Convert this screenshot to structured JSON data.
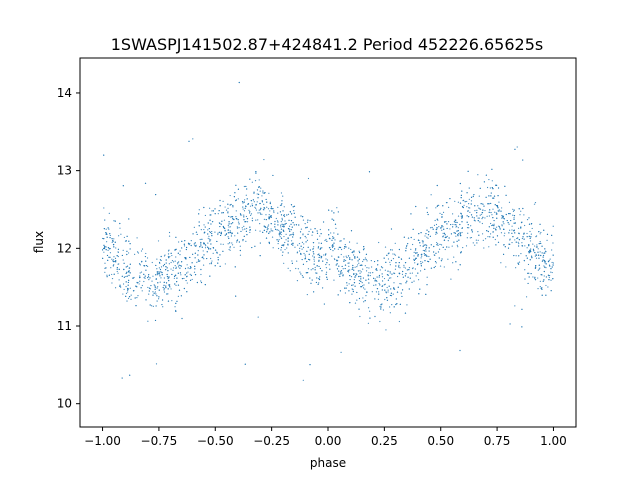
{
  "chart_data": {
    "type": "scatter",
    "title": "1SWASPJ141502.87+424841.2 Period 452226.65625s",
    "xlabel": "phase",
    "ylabel": "flux",
    "xlim": [
      -1.1,
      1.1
    ],
    "ylim": [
      9.7,
      14.45
    ],
    "xticks": [
      -1.0,
      -0.75,
      -0.5,
      -0.25,
      0.0,
      0.25,
      0.5,
      0.75,
      1.0
    ],
    "xtick_labels": [
      "−1.00",
      "−0.75",
      "−0.50",
      "−0.25",
      "0.00",
      "0.25",
      "0.50",
      "0.75",
      "1.00"
    ],
    "yticks": [
      10,
      11,
      12,
      13,
      14
    ],
    "ytick_labels": [
      "10",
      "11",
      "12",
      "13",
      "14"
    ],
    "grid": false,
    "series": [
      {
        "color": "#1f77b4",
        "marker": "dot",
        "profile_x": [
          -1.0,
          -0.95,
          -0.9,
          -0.85,
          -0.8,
          -0.75,
          -0.7,
          -0.65,
          -0.6,
          -0.55,
          -0.5,
          -0.45,
          -0.4,
          -0.35,
          -0.3,
          -0.25,
          -0.2,
          -0.15,
          -0.1,
          -0.05,
          0.0
        ],
        "profile_y": [
          12.1,
          11.9,
          11.75,
          11.65,
          11.6,
          11.6,
          11.65,
          11.75,
          11.9,
          12.05,
          12.15,
          12.25,
          12.35,
          12.45,
          12.5,
          12.4,
          12.3,
          12.15,
          12.0,
          11.85,
          11.8
        ],
        "scatter_half_width": 0.5,
        "phase_range": [
          -1.0,
          1.0
        ],
        "approx_points": 3200
      }
    ]
  }
}
